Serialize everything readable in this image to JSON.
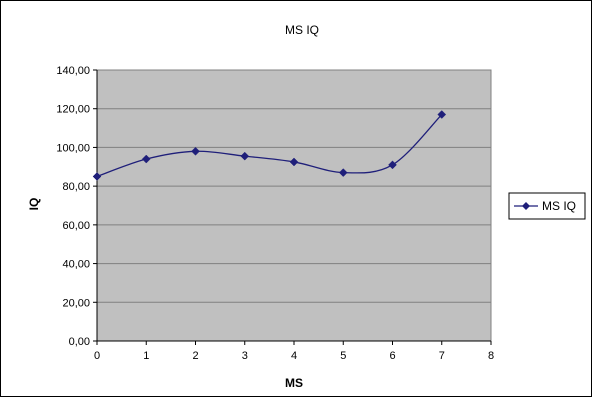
{
  "chart_data": {
    "type": "line",
    "title": "MS IQ",
    "xlabel": "MS",
    "ylabel": "IQ",
    "xlim": [
      0,
      8
    ],
    "ylim": [
      0,
      140
    ],
    "x_ticks": [
      "0",
      "1",
      "2",
      "3",
      "4",
      "5",
      "6",
      "7",
      "8"
    ],
    "y_ticks": [
      "0,00",
      "20,00",
      "40,00",
      "60,00",
      "80,00",
      "100,00",
      "120,00",
      "140,00"
    ],
    "grid": "horizontal",
    "legend_position": "right",
    "plot_background": "#c0c0c0",
    "series": [
      {
        "name": "MS IQ",
        "color": "#1f1f7a",
        "marker": "diamond",
        "smooth": true,
        "x": [
          0,
          1,
          2,
          3,
          4,
          5,
          6,
          7
        ],
        "y": [
          85,
          94,
          98,
          95.5,
          92.5,
          87,
          91,
          117
        ]
      }
    ]
  }
}
